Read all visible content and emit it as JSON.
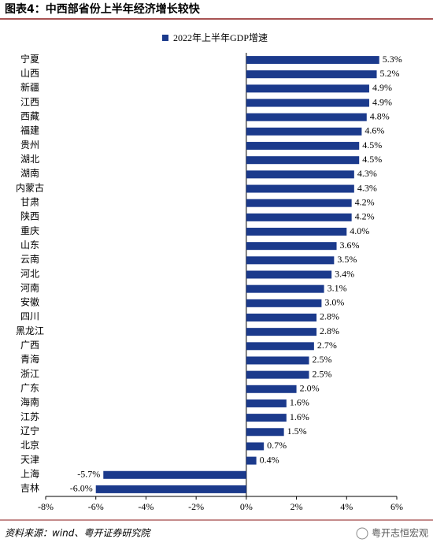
{
  "chart_data": {
    "type": "bar",
    "orientation": "horizontal",
    "title": "图表4：中西部省份上半年经济增长较快",
    "categories": [
      "宁夏",
      "山西",
      "新疆",
      "江西",
      "西藏",
      "福建",
      "贵州",
      "湖北",
      "湖南",
      "内蒙古",
      "甘肃",
      "陕西",
      "重庆",
      "山东",
      "云南",
      "河北",
      "河南",
      "安徽",
      "四川",
      "黑龙江",
      "广西",
      "青海",
      "浙江",
      "广东",
      "海南",
      "江苏",
      "辽宁",
      "北京",
      "天津",
      "上海",
      "吉林"
    ],
    "series": [
      {
        "name": "2022年上半年GDP增速",
        "color": "#1b3a8c",
        "values": [
          5.3,
          5.2,
          4.9,
          4.9,
          4.8,
          4.6,
          4.5,
          4.5,
          4.3,
          4.3,
          4.2,
          4.2,
          4.0,
          3.6,
          3.5,
          3.4,
          3.1,
          3.0,
          2.8,
          2.8,
          2.7,
          2.5,
          2.5,
          2.0,
          1.6,
          1.6,
          1.5,
          0.7,
          0.4,
          -5.7,
          -6.0
        ],
        "value_labels": [
          "5.3%",
          "5.2%",
          "4.9%",
          "4.9%",
          "4.8%",
          "4.6%",
          "4.5%",
          "4.5%",
          "4.3%",
          "4.3%",
          "4.2%",
          "4.2%",
          "4.0%",
          "3.6%",
          "3.5%",
          "3.4%",
          "3.1%",
          "3.0%",
          "2.8%",
          "2.8%",
          "2.7%",
          "2.5%",
          "2.5%",
          "2.0%",
          "1.6%",
          "1.6%",
          "1.5%",
          "0.7%",
          "0.4%",
          "-5.7%",
          "-6.0%"
        ]
      }
    ],
    "xlim": [
      -8,
      6
    ],
    "xticks": [
      {
        "value": -8,
        "label": "-8%"
      },
      {
        "value": -6,
        "label": "-6%"
      },
      {
        "value": -4,
        "label": "-4%"
      },
      {
        "value": -2,
        "label": "-2%"
      },
      {
        "value": 0,
        "label": "0%"
      },
      {
        "value": 2,
        "label": "2%"
      },
      {
        "value": 4,
        "label": "4%"
      },
      {
        "value": 6,
        "label": "6%"
      }
    ],
    "legend": "top",
    "source": "资料来源：wind、粤开证券研究院",
    "watermark": "粤开志恒宏观"
  }
}
